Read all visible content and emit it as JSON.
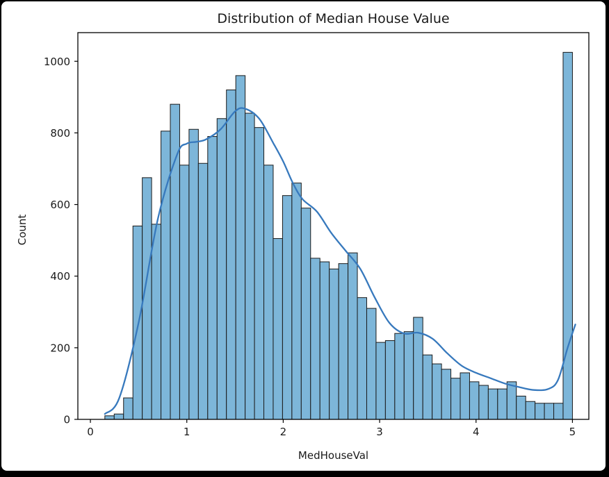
{
  "chart_data": {
    "type": "bar",
    "subtype": "histogram-with-kde",
    "title": "Distribution of Median House Value",
    "xlabel": "MedHouseVal",
    "ylabel": "Count",
    "xlim": [
      -0.13,
      5.17
    ],
    "ylim": [
      0,
      1080
    ],
    "x_ticks": [
      0,
      1,
      2,
      3,
      4,
      5
    ],
    "y_ticks": [
      0,
      200,
      400,
      600,
      800,
      1000
    ],
    "grid": false,
    "legend": "none",
    "bin_start": 0.15,
    "bin_width": 0.097,
    "bar_values": [
      10,
      15,
      60,
      540,
      675,
      545,
      805,
      880,
      710,
      810,
      715,
      790,
      840,
      920,
      960,
      855,
      815,
      710,
      505,
      625,
      660,
      590,
      450,
      440,
      420,
      435,
      465,
      340,
      310,
      215,
      220,
      240,
      245,
      285,
      180,
      155,
      140,
      115,
      130,
      105,
      95,
      85,
      85,
      105,
      65,
      50,
      45,
      45,
      45,
      1025
    ],
    "kde": {
      "x": [
        0.15,
        0.3,
        0.5,
        0.7,
        0.9,
        1.0,
        1.1,
        1.2,
        1.35,
        1.5,
        1.6,
        1.75,
        1.9,
        2.0,
        2.1,
        2.2,
        2.35,
        2.5,
        2.65,
        2.8,
        2.95,
        3.1,
        3.25,
        3.4,
        3.55,
        3.7,
        3.85,
        4.0,
        4.15,
        4.3,
        4.45,
        4.6,
        4.75,
        4.85,
        4.95,
        5.03
      ],
      "y": [
        15,
        60,
        270,
        560,
        740,
        770,
        775,
        782,
        810,
        860,
        868,
        840,
        770,
        720,
        660,
        615,
        580,
        520,
        470,
        420,
        340,
        270,
        240,
        242,
        225,
        185,
        150,
        130,
        115,
        100,
        90,
        82,
        85,
        110,
        200,
        265
      ]
    },
    "colors": {
      "bar_fill": "#7db6d9",
      "bar_edge": "#1a1a1a",
      "kde_line": "#3779bd",
      "axis": "#000000",
      "text": "#1a1a1a",
      "figure_bg": "#ffffff",
      "frame_bg": "#000000"
    }
  }
}
